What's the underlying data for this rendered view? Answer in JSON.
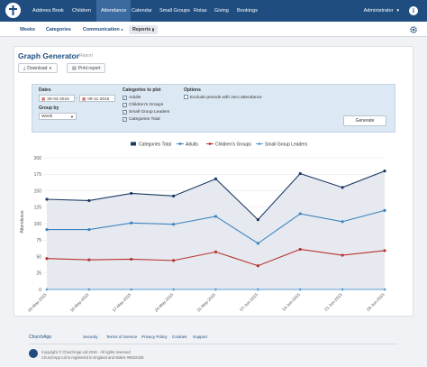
{
  "nav": {
    "items": [
      "Address Book",
      "Children",
      "Attendance",
      "Calendar",
      "Small Groups",
      "Rotas",
      "Giving",
      "Bookings"
    ],
    "active": "Attendance",
    "user": "Administrator",
    "info_icon": "i"
  },
  "subnav": {
    "items": [
      "Weeks",
      "Categories",
      "Communication",
      "Reports"
    ],
    "active": "Reports"
  },
  "header": {
    "title": "Graph Generator",
    "subtitle": "Report",
    "download": "Download",
    "print": "Print report"
  },
  "options": {
    "dates_label": "Dates",
    "date_from": "30-04-2015",
    "date_to": "09-11-2015",
    "group_by_label": "Group by",
    "group_by_value": "Week",
    "categories_label": "Categories to plot",
    "categories": [
      "Adults",
      "Children's Groups",
      "Small Group Leaders",
      "Categories Total"
    ],
    "options_label": "Options",
    "exclude_label": "Exclude periods with zero attendance",
    "generate_label": "Generate"
  },
  "chart_data": {
    "type": "line",
    "ylabel": "Attendance",
    "ylim": [
      0,
      200
    ],
    "yticks": [
      0,
      25,
      50,
      75,
      100,
      125,
      150,
      175,
      200
    ],
    "categories": [
      "03-May-2015",
      "10-May-2015",
      "17-May-2015",
      "24-May-2015",
      "31-May-2015",
      "07-Jun-2015",
      "14-Jun-2015",
      "21-Jun-2015",
      "28-Jun-2015"
    ],
    "series": [
      {
        "name": "Categories Total",
        "color": "#1c3a63",
        "values": [
          137,
          135,
          146,
          142,
          168,
          106,
          176,
          155,
          180
        ]
      },
      {
        "name": "Adults",
        "color": "#3d85c0",
        "values": [
          91,
          91,
          101,
          99,
          111,
          70,
          115,
          103,
          120
        ]
      },
      {
        "name": "Children's Groups",
        "color": "#b83232",
        "values": [
          47,
          45,
          46,
          44,
          57,
          36,
          61,
          52,
          59
        ]
      },
      {
        "name": "Small Group Leaders",
        "color": "#5a9fd4",
        "values": [
          0,
          0,
          0,
          0,
          0,
          0,
          0,
          0,
          0
        ]
      }
    ],
    "legend": "top-center",
    "area_fill": "#e6e9ef",
    "grid": true
  },
  "footer": {
    "brand": "ChurchApp",
    "links": [
      "Security",
      "Terms of Service",
      "Privacy Policy",
      "Cookies",
      "Support"
    ],
    "copyright": "Copyright © ChurchApp Ltd 2015 · All rights reserved",
    "registration": "ChurchApp Ltd is registered in England and Wales #8532235"
  }
}
